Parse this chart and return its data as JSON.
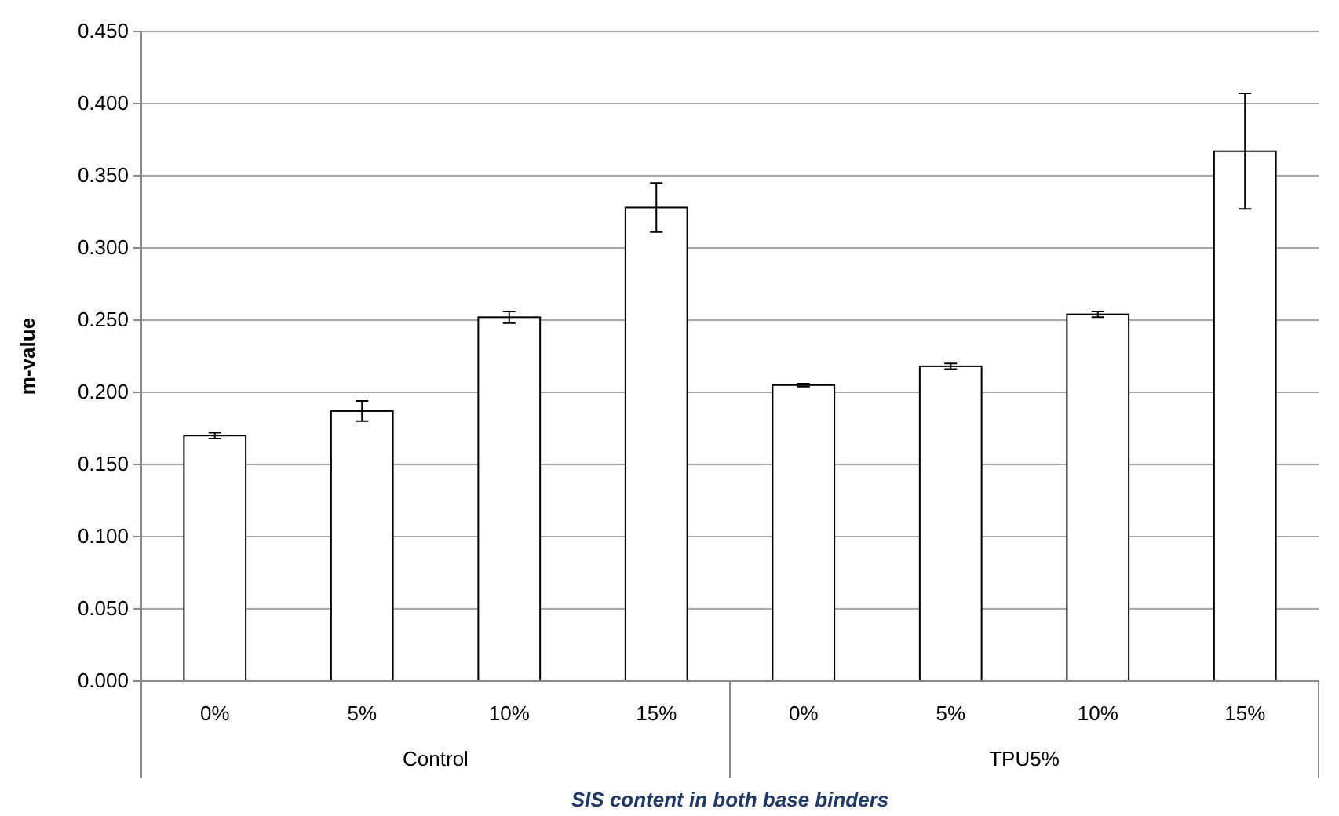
{
  "chart_data": {
    "type": "bar",
    "xlabel": "SIS content in both base binders",
    "ylabel": "m-value",
    "categories": [
      "0%",
      "5%",
      "10%",
      "15%",
      "0%",
      "5%",
      "10%",
      "15%"
    ],
    "values": [
      0.17,
      0.187,
      0.252,
      0.328,
      0.205,
      0.218,
      0.254,
      0.367
    ],
    "errors": [
      0.002,
      0.007,
      0.004,
      0.017,
      0.001,
      0.002,
      0.002,
      0.04
    ],
    "color": "#ffffff",
    "annotations": [
      "Control",
      "TPU5%"
    ],
    "ylim": [
      0,
      0.45
    ],
    "yticks": [
      {
        "value": 0,
        "label": "0.000"
      },
      {
        "value": 0.05,
        "label": "0.050"
      },
      {
        "value": 0.1,
        "label": "0.100"
      },
      {
        "value": 0.15,
        "label": "0.150"
      },
      {
        "value": 0.2,
        "label": "0.200"
      },
      {
        "value": 0.25,
        "label": "0.250"
      },
      {
        "value": 0.3,
        "label": "0.300"
      },
      {
        "value": 0.35,
        "label": "0.350"
      },
      {
        "value": 0.4,
        "label": "0.400"
      },
      {
        "value": 0.45,
        "label": "0.450"
      }
    ],
    "grid": "y"
  }
}
